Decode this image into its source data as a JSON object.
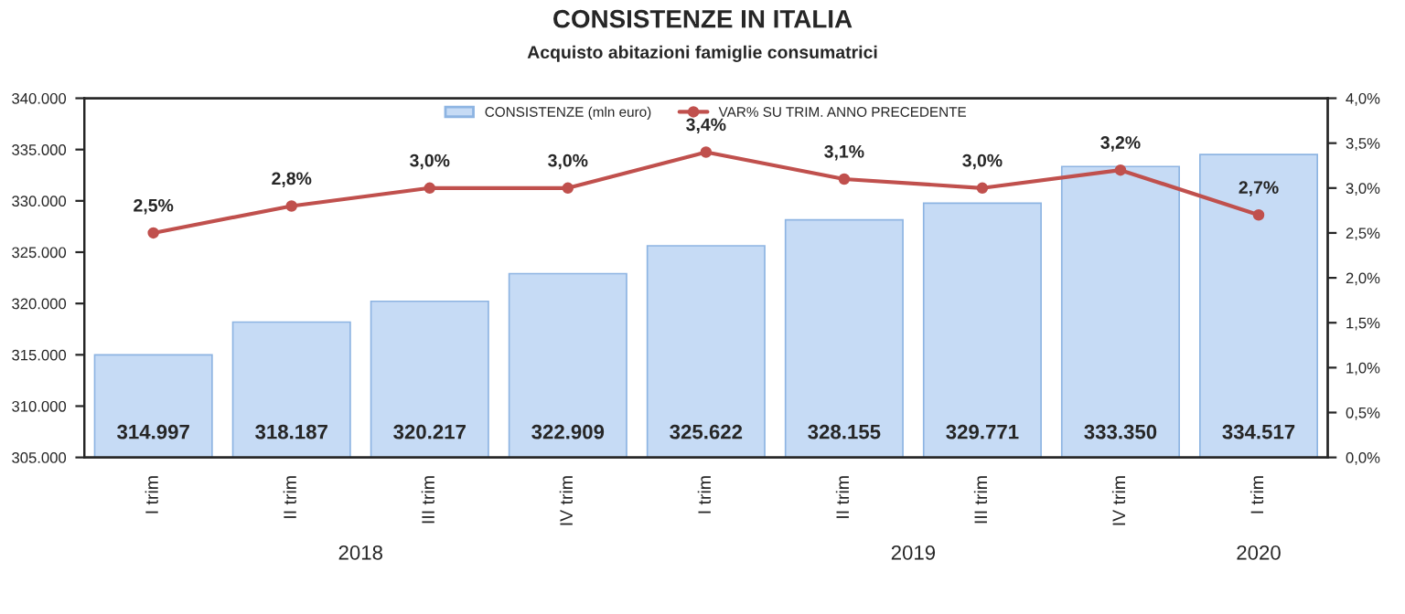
{
  "chart_data": {
    "type": "bar",
    "title": "CONSISTENZE IN ITALIA",
    "subtitle": "Acquisto abitazioni famiglie consumatrici",
    "categories": [
      "I trim",
      "II trim",
      "III trim",
      "IV trim",
      "I trim",
      "II trim",
      "III trim",
      "IV trim",
      "I trim"
    ],
    "series": [
      {
        "name": "CONSISTENZE (mln euro)",
        "color": "#c6dbf5",
        "values": [
          314997,
          318187,
          320217,
          322909,
          325622,
          328155,
          329771,
          333350,
          334517
        ],
        "value_labels": [
          "314.997",
          "318.187",
          "320.217",
          "322.909",
          "325.622",
          "328.155",
          "329.771",
          "333.350",
          "334.517"
        ]
      },
      {
        "name": "VAR% SU TRIM. ANNO PRECEDENTE",
        "type": "line",
        "axis": "y2",
        "color": "#c0504d",
        "marker": "circle",
        "values": [
          2.5,
          2.8,
          3.0,
          3.0,
          3.4,
          3.1,
          3.0,
          3.2,
          2.7
        ],
        "value_labels": [
          "2,5%",
          "2,8%",
          "3,0%",
          "3,0%",
          "3,4%",
          "3,1%",
          "3,0%",
          "3,2%",
          "2,7%"
        ]
      }
    ],
    "ylim": [
      305000,
      340000
    ],
    "yticks": [
      {
        "value": 305000,
        "label": "305.000"
      },
      {
        "value": 310000,
        "label": "310.000"
      },
      {
        "value": 315000,
        "label": "315.000"
      },
      {
        "value": 320000,
        "label": "320.000"
      },
      {
        "value": 325000,
        "label": "325.000"
      },
      {
        "value": 330000,
        "label": "330.000"
      },
      {
        "value": 335000,
        "label": "335.000"
      },
      {
        "value": 340000,
        "label": "340.000"
      }
    ],
    "y2lim": [
      0,
      4.0
    ],
    "y2ticks": [
      {
        "value": 0,
        "label": "0,0%"
      },
      {
        "value": 0.5,
        "label": "0,5%"
      },
      {
        "value": 1.0,
        "label": "1,0%"
      },
      {
        "value": 1.5,
        "label": "1,5%"
      },
      {
        "value": 2.0,
        "label": "2,0%"
      },
      {
        "value": 2.5,
        "label": "2,5%"
      },
      {
        "value": 3.0,
        "label": "3,0%"
      },
      {
        "value": 3.5,
        "label": "3,5%"
      },
      {
        "value": 4.0,
        "label": "4,0%"
      }
    ],
    "annotations": [
      "2018",
      "2019",
      "2020"
    ],
    "legend": "top",
    "grid": false
  }
}
